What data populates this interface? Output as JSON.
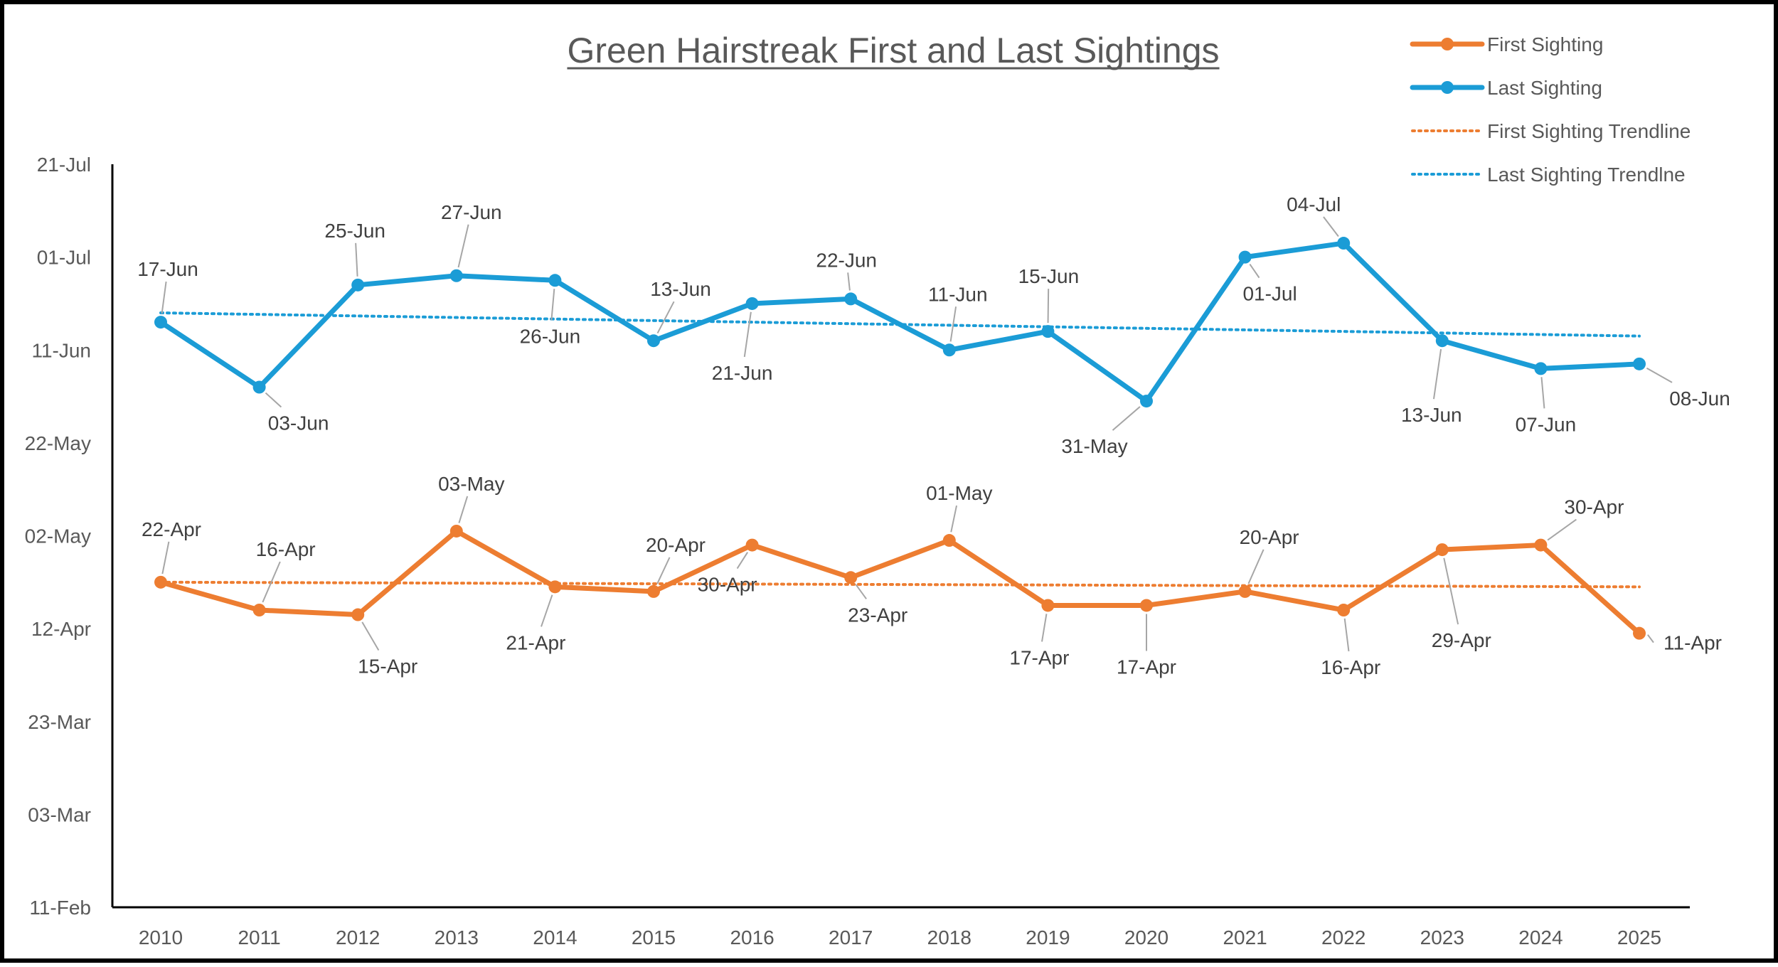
{
  "chart_data": {
    "type": "line",
    "title": "Green Hairstreak First and Last Sightings",
    "xlabel": "",
    "ylabel": "",
    "x": [
      "2010",
      "2011",
      "2012",
      "2013",
      "2014",
      "2015",
      "2016",
      "2017",
      "2018",
      "2019",
      "2020",
      "2021",
      "2022",
      "2023",
      "2024",
      "2025"
    ],
    "y_ticks": [
      "21-Jul",
      "01-Jul",
      "11-Jun",
      "22-May",
      "02-May",
      "12-Apr",
      "23-Mar",
      "03-Mar",
      "11-Feb"
    ],
    "ylim": [
      "11-Feb",
      "21-Jul"
    ],
    "grid": false,
    "legend_position": "top-right",
    "series": [
      {
        "name": "First Sighting",
        "color": "#ED7D31",
        "values": [
          "22-Apr",
          "16-Apr",
          "15-Apr",
          "03-May",
          "21-Apr",
          "20-Apr",
          "30-Apr",
          "23-Apr",
          "01-May",
          "17-Apr",
          "17-Apr",
          "20-Apr",
          "16-Apr",
          "29-Apr",
          "30-Apr",
          "11-Apr"
        ]
      },
      {
        "name": "Last Sighting",
        "color": "#1B9CD6",
        "values": [
          "17-Jun",
          "03-Jun",
          "25-Jun",
          "27-Jun",
          "26-Jun",
          "13-Jun",
          "21-Jun",
          "22-Jun",
          "11-Jun",
          "15-Jun",
          "31-May",
          "01-Jul",
          "04-Jul",
          "13-Jun",
          "07-Jun",
          "08-Jun"
        ]
      }
    ],
    "trendlines": [
      {
        "name": "First Sighting Trendline",
        "color": "#ED7D31",
        "start": "22-Apr",
        "end": "21-Apr"
      },
      {
        "name": "Last Sighting Trendlne",
        "color": "#1B9CD6",
        "start": "19-Jun",
        "end": "14-Jun"
      }
    ]
  }
}
